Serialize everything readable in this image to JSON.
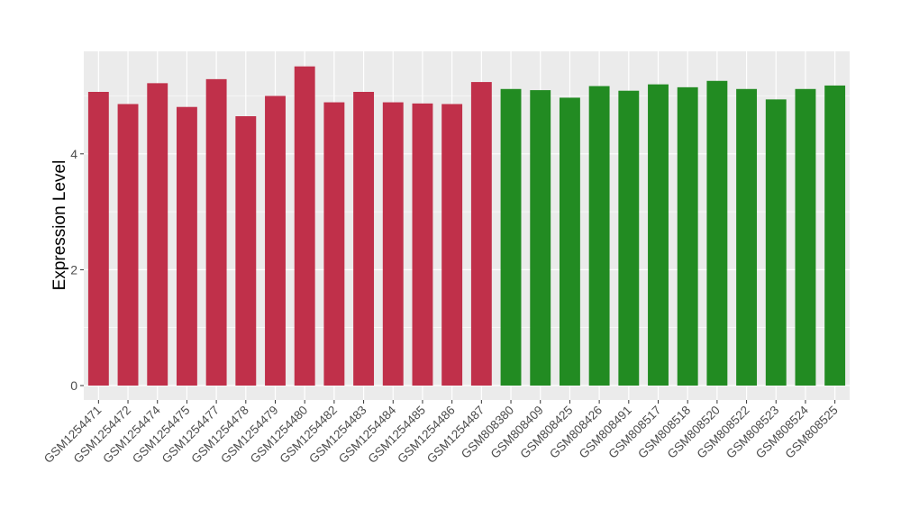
{
  "chart_data": {
    "type": "bar",
    "title": "",
    "xlabel": "",
    "ylabel": "Expression Level",
    "ylim": [
      0,
      5.75
    ],
    "yticks": [
      0,
      2,
      4
    ],
    "grid": true,
    "legend": "none",
    "background_color": "#ebebeb",
    "grid_color": "#ffffff",
    "categories": [
      "GSM1254471",
      "GSM1254472",
      "GSM1254474",
      "GSM1254475",
      "GSM1254477",
      "GSM1254478",
      "GSM1254479",
      "GSM1254480",
      "GSM1254482",
      "GSM1254483",
      "GSM1254484",
      "GSM1254485",
      "GSM1254486",
      "GSM1254487",
      "GSM808380",
      "GSM808409",
      "GSM808425",
      "GSM808426",
      "GSM808491",
      "GSM808517",
      "GSM808518",
      "GSM808520",
      "GSM808522",
      "GSM808523",
      "GSM808524",
      "GSM808525"
    ],
    "values": [
      5.07,
      4.86,
      5.22,
      4.81,
      5.29,
      4.65,
      5.0,
      5.51,
      4.89,
      5.07,
      4.89,
      4.87,
      4.86,
      5.24,
      5.12,
      5.1,
      4.97,
      5.17,
      5.09,
      5.2,
      5.15,
      5.26,
      5.12,
      4.94,
      5.12,
      5.18
    ],
    "bar_colors": [
      "#c0304a",
      "#c0304a",
      "#c0304a",
      "#c0304a",
      "#c0304a",
      "#c0304a",
      "#c0304a",
      "#c0304a",
      "#c0304a",
      "#c0304a",
      "#c0304a",
      "#c0304a",
      "#c0304a",
      "#c0304a",
      "#228b22",
      "#228b22",
      "#228b22",
      "#228b22",
      "#228b22",
      "#228b22",
      "#228b22",
      "#228b22",
      "#228b22",
      "#228b22",
      "#228b22",
      "#228b22"
    ]
  }
}
